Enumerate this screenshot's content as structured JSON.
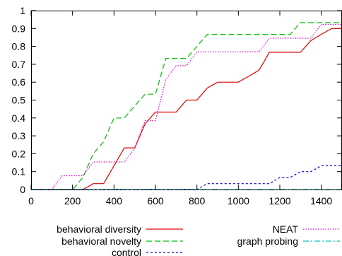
{
  "chart_data": {
    "type": "line",
    "title": "",
    "xlabel": "",
    "ylabel": "",
    "xlim": [
      0,
      1500
    ],
    "ylim": [
      0,
      1
    ],
    "xticks": [
      "0",
      "200",
      "400",
      "600",
      "800",
      "1000",
      "1200",
      "1400"
    ],
    "yticks": [
      "0",
      "0.1",
      "0.2",
      "0.3",
      "0.4",
      "0.5",
      "0.6",
      "0.7",
      "0.8",
      "0.9",
      "1"
    ],
    "grid": false,
    "legend_position": "below",
    "series": [
      {
        "name": "behavioral diversity",
        "color": "#e00000",
        "dash": "solid",
        "x": [
          0,
          250,
          300,
          350,
          400,
          450,
          500,
          550,
          600,
          650,
          700,
          750,
          800,
          850,
          900,
          950,
          1000,
          1050,
          1100,
          1150,
          1200,
          1250,
          1300,
          1350,
          1400,
          1450,
          1500
        ],
        "y": [
          0,
          0,
          0.033,
          0.033,
          0.133,
          0.233,
          0.233,
          0.367,
          0.433,
          0.433,
          0.433,
          0.5,
          0.5,
          0.567,
          0.6,
          0.6,
          0.6,
          0.633,
          0.667,
          0.767,
          0.767,
          0.767,
          0.767,
          0.833,
          0.867,
          0.9,
          0.9
        ]
      },
      {
        "name": "behavioral novelty",
        "color": "#00c000",
        "dash": "long-dash",
        "x": [
          0,
          200,
          250,
          300,
          350,
          400,
          450,
          500,
          550,
          600,
          650,
          700,
          750,
          800,
          850,
          900,
          1000,
          1100,
          1200,
          1250,
          1300,
          1350,
          1400,
          1450,
          1500
        ],
        "y": [
          0,
          0,
          0.067,
          0.2,
          0.267,
          0.4,
          0.4,
          0.467,
          0.533,
          0.533,
          0.733,
          0.733,
          0.733,
          0.8,
          0.867,
          0.867,
          0.867,
          0.867,
          0.867,
          0.867,
          0.933,
          0.933,
          0.933,
          0.933,
          0.933
        ]
      },
      {
        "name": "control",
        "color": "#0000c0",
        "dash": "short-dash",
        "x": [
          0,
          800,
          850,
          900,
          1000,
          1100,
          1150,
          1200,
          1250,
          1300,
          1350,
          1400,
          1450,
          1500
        ],
        "y": [
          0,
          0,
          0.033,
          0.033,
          0.033,
          0.033,
          0.033,
          0.067,
          0.067,
          0.1,
          0.1,
          0.133,
          0.133,
          0.133
        ]
      },
      {
        "name": "NEAT",
        "color": "#e000e0",
        "dash": "dotted",
        "x": [
          0,
          100,
          150,
          250,
          300,
          350,
          450,
          500,
          550,
          600,
          650,
          700,
          750,
          800,
          900,
          1000,
          1100,
          1150,
          1200,
          1250,
          1300,
          1350,
          1400,
          1450,
          1500
        ],
        "y": [
          0,
          0,
          0.077,
          0.077,
          0.154,
          0.154,
          0.154,
          0.231,
          0.385,
          0.385,
          0.615,
          0.692,
          0.692,
          0.769,
          0.769,
          0.769,
          0.769,
          0.846,
          0.846,
          0.846,
          0.846,
          0.846,
          0.923,
          0.923,
          0.923
        ]
      },
      {
        "name": "graph probing",
        "color": "#00c0c0",
        "dash": "dash-dot",
        "x": [
          0,
          1500
        ],
        "y": [
          0,
          0
        ]
      }
    ]
  }
}
